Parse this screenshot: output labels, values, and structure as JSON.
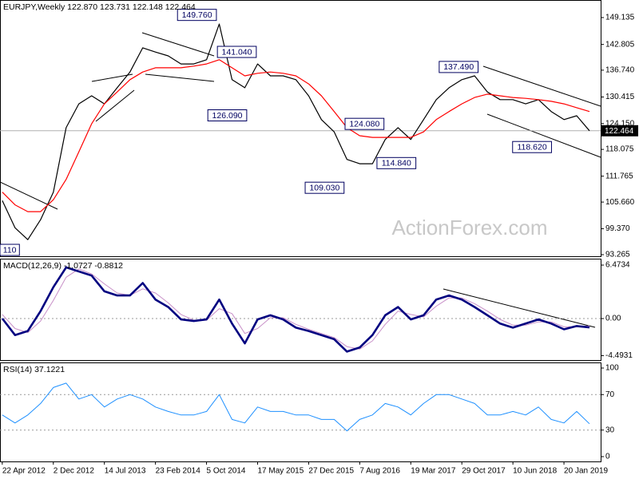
{
  "chart_data": [
    {
      "type": "line",
      "title": "EURJPY,Weekly  122.870 123.731 122.148 122.464",
      "watermark": "ActionForex.com",
      "xlim": [
        "2012-04-12",
        "2019-06-30"
      ],
      "x": [
        "2012-04-22",
        "2012-06-17",
        "2012-08-12",
        "2012-10-07",
        "2012-12-02",
        "2013-01-27",
        "2013-03-24",
        "2013-05-19",
        "2013-07-14",
        "2013-09-08",
        "2013-11-03",
        "2013-12-29",
        "2014-02-23",
        "2014-04-20",
        "2014-06-15",
        "2014-08-10",
        "2014-10-05",
        "2014-11-30",
        "2015-01-25",
        "2015-03-22",
        "2015-05-17",
        "2015-07-12",
        "2015-09-06",
        "2015-11-01",
        "2015-12-27",
        "2016-02-21",
        "2016-04-17",
        "2016-06-12",
        "2016-08-07",
        "2016-10-02",
        "2016-11-27",
        "2017-01-22",
        "2017-03-19",
        "2017-05-14",
        "2017-07-09",
        "2017-09-03",
        "2017-10-29",
        "2017-12-24",
        "2018-02-18",
        "2018-04-15",
        "2018-06-10",
        "2018-08-05",
        "2018-09-30",
        "2018-11-25",
        "2019-01-20",
        "2019-03-17",
        "2019-05-12"
      ],
      "series": [
        {
          "color": "#000000",
          "width": 1.2,
          "values": [
            106,
            99.6,
            96.8,
            101.5,
            108,
            123.2,
            128.8,
            130.7,
            128.8,
            132.6,
            136.3,
            142,
            141,
            140.1,
            138.2,
            138.2,
            139.2,
            147.6,
            134.5,
            132.6,
            138.2,
            135.4,
            135.4,
            134.5,
            130.7,
            125.1,
            122.2,
            115.7,
            114.7,
            114.7,
            120.4,
            123.2,
            120.4,
            125.1,
            129.8,
            132.6,
            134.5,
            135.4,
            131.6,
            129.8,
            129.8,
            128.8,
            129.8,
            127,
            125.1,
            126,
            122.464
          ]
        },
        {
          "color": "#ff0000",
          "width": 1.2,
          "values": [
            108,
            105,
            103.4,
            103.4,
            106.2,
            111,
            117.5,
            124.1,
            128.8,
            131.6,
            134.5,
            136.3,
            137.3,
            137.3,
            137.3,
            137.7,
            138.2,
            139.2,
            137.3,
            135.4,
            136,
            136.3,
            136,
            135.4,
            133.5,
            130.7,
            127,
            123.2,
            121.3,
            120.9,
            120.9,
            120.9,
            120.9,
            122.2,
            125.1,
            127,
            128.8,
            130.3,
            131.1,
            130.7,
            130.3,
            130.1,
            129.8,
            129.4,
            128.8,
            127.9,
            127
          ]
        }
      ],
      "ylim": [
        92.89,
        153.27
      ],
      "yticks": [
        149.135,
        142.805,
        {
          "value": 136.74,
          "label": "136.740"
        },
        130.415,
        {
          "value": 124.15,
          "label": "124.150"
        },
        118.075,
        111.765,
        {
          "value": 105.66,
          "label": "105.660"
        },
        {
          "value": 99.37,
          "label": "99.370"
        },
        93.265
      ],
      "last_price": 122.464,
      "annotations": [
        {
          "text": "149.760",
          "x": "2014-08-24",
          "y": 149.76
        },
        {
          "text": "141.040",
          "x": "2015-02-15",
          "y": 141.04
        },
        {
          "text": "126.090",
          "x": "2015-01-04",
          "y": 126.09
        },
        {
          "text": "124.080",
          "x": "2016-08-28",
          "y": 124.08
        },
        {
          "text": "109.030",
          "x": "2016-03-06",
          "y": 109.03
        },
        {
          "text": "114.840",
          "x": "2017-01-15",
          "y": 114.84
        },
        {
          "text": "137.490",
          "x": "2017-10-15",
          "y": 137.49
        },
        {
          "text": "118.620",
          "x": "2018-09-02",
          "y": 118.62
        },
        {
          "text": "110",
          "x": "2012-05-13",
          "y": 94.39
        }
      ]
    },
    {
      "type": "line",
      "title": "MACD(12,26,9) -1.0727 -0.8812",
      "xlim": [
        "2012-04-12",
        "2019-06-30"
      ],
      "x": [
        "2012-04-22",
        "2012-06-17",
        "2012-08-12",
        "2012-10-07",
        "2012-12-02",
        "2013-01-27",
        "2013-03-24",
        "2013-05-19",
        "2013-07-14",
        "2013-09-08",
        "2013-11-03",
        "2013-12-29",
        "2014-02-23",
        "2014-04-20",
        "2014-06-15",
        "2014-08-10",
        "2014-10-05",
        "2014-11-30",
        "2015-01-25",
        "2015-03-22",
        "2015-05-17",
        "2015-07-12",
        "2015-09-06",
        "2015-11-01",
        "2015-12-27",
        "2016-02-21",
        "2016-04-17",
        "2016-06-12",
        "2016-08-07",
        "2016-10-02",
        "2016-11-27",
        "2017-01-22",
        "2017-03-19",
        "2017-05-14",
        "2017-07-09",
        "2017-09-03",
        "2017-10-29",
        "2017-12-24",
        "2018-02-18",
        "2018-04-15",
        "2018-06-10",
        "2018-08-05",
        "2018-09-30",
        "2018-11-25",
        "2019-01-20",
        "2019-03-17",
        "2019-05-12"
      ],
      "series": [
        {
          "color": "#c890c8",
          "width": 1,
          "values": [
            0.5,
            -1.2,
            -1.7,
            -0.3,
            2.2,
            5.0,
            6.0,
            5.4,
            4.2,
            3.1,
            2.8,
            3.6,
            3.1,
            1.9,
            0.5,
            -0.2,
            -0.2,
            1.2,
            0.6,
            -1.8,
            -1.2,
            0.1,
            0.1,
            -0.7,
            -1.3,
            -1.8,
            -2.3,
            -3.4,
            -3.7,
            -2.7,
            -0.7,
            0.9,
            0.5,
            0.2,
            1.5,
            2.5,
            2.5,
            1.8,
            0.9,
            -0.1,
            -0.8,
            -0.8,
            -0.4,
            -0.4,
            -1.0,
            -1.0,
            -0.8812
          ]
        },
        {
          "color": "#000080",
          "width": 2.6,
          "values": [
            0,
            -2.0,
            -1.5,
            0.9,
            3.8,
            6.2,
            5.7,
            5.2,
            3.3,
            2.8,
            2.8,
            4.3,
            2.3,
            1.4,
            -0.1,
            -0.3,
            -0.1,
            2.3,
            -0.6,
            -3.0,
            -0.1,
            0.4,
            -0.1,
            -1.1,
            -1.5,
            -2.0,
            -2.5,
            -4.0,
            -3.5,
            -2.0,
            0.4,
            1.4,
            -0.1,
            0.4,
            2.3,
            2.8,
            2.3,
            1.4,
            0.4,
            -0.6,
            -1.1,
            -0.6,
            -0.1,
            -0.6,
            -1.3,
            -0.9,
            -1.0727
          ]
        }
      ],
      "ylim": [
        -5.02,
        7.25
      ],
      "yticks": [
        6.4734,
        {
          "value": 0,
          "label": "0.00"
        },
        -4.4931
      ],
      "levels": [
        0
      ]
    },
    {
      "type": "line",
      "title": "RSI(14) 37.1221",
      "xlim": [
        "2012-04-12",
        "2019-06-30"
      ],
      "x": [
        "2012-04-22",
        "2012-06-17",
        "2012-08-12",
        "2012-10-07",
        "2012-12-02",
        "2013-01-27",
        "2013-03-24",
        "2013-05-19",
        "2013-07-14",
        "2013-09-08",
        "2013-11-03",
        "2013-12-29",
        "2014-02-23",
        "2014-04-20",
        "2014-06-15",
        "2014-08-10",
        "2014-10-05",
        "2014-11-30",
        "2015-01-25",
        "2015-03-22",
        "2015-05-17",
        "2015-07-12",
        "2015-09-06",
        "2015-11-01",
        "2015-12-27",
        "2016-02-21",
        "2016-04-17",
        "2016-06-12",
        "2016-08-07",
        "2016-10-02",
        "2016-11-27",
        "2017-01-22",
        "2017-03-19",
        "2017-05-14",
        "2017-07-09",
        "2017-09-03",
        "2017-10-29",
        "2017-12-24",
        "2018-02-18",
        "2018-04-15",
        "2018-06-10",
        "2018-08-05",
        "2018-09-30",
        "2018-11-25",
        "2019-01-20",
        "2019-03-17",
        "2019-05-12"
      ],
      "series": [
        {
          "color": "#1e90ff",
          "width": 1,
          "values": [
            47,
            38,
            47,
            60,
            78,
            83,
            65,
            70,
            56,
            65,
            70,
            65,
            56,
            51,
            47,
            47,
            51,
            70,
            42,
            38,
            56,
            51,
            51,
            47,
            47,
            42,
            42,
            29,
            42,
            47,
            60,
            56,
            47,
            60,
            70,
            70,
            65,
            60,
            47,
            47,
            51,
            47,
            56,
            42,
            38,
            51,
            37.1221
          ]
        }
      ],
      "ylim": [
        -5.4,
        106.3
      ],
      "yticks": [
        100,
        70,
        30,
        0
      ],
      "levels": [
        70,
        30
      ],
      "xticks": [
        {
          "value": "2012-04-22",
          "label": "22 Apr 2012"
        },
        {
          "value": "2012-12-02",
          "label": "2 Dec 2012"
        },
        {
          "value": "2013-07-14",
          "label": "14 Jul 2013"
        },
        {
          "value": "2014-02-23",
          "label": "23 Feb 2014"
        },
        {
          "value": "2014-10-05",
          "label": "5 Oct 2014"
        },
        {
          "value": "2015-05-17",
          "label": "17 May 2015"
        },
        {
          "value": "2015-12-27",
          "label": "27 Dec 2015"
        },
        {
          "value": "2016-08-07",
          "label": "7 Aug 2016"
        },
        {
          "value": "2017-03-19",
          "label": "19 Mar 2017"
        },
        {
          "value": "2017-10-29",
          "label": "29 Oct 2017"
        },
        {
          "value": "2018-06-10",
          "label": "10 Jun 2018"
        },
        {
          "value": "2019-01-20",
          "label": "20 Jan 2019"
        }
      ]
    }
  ]
}
